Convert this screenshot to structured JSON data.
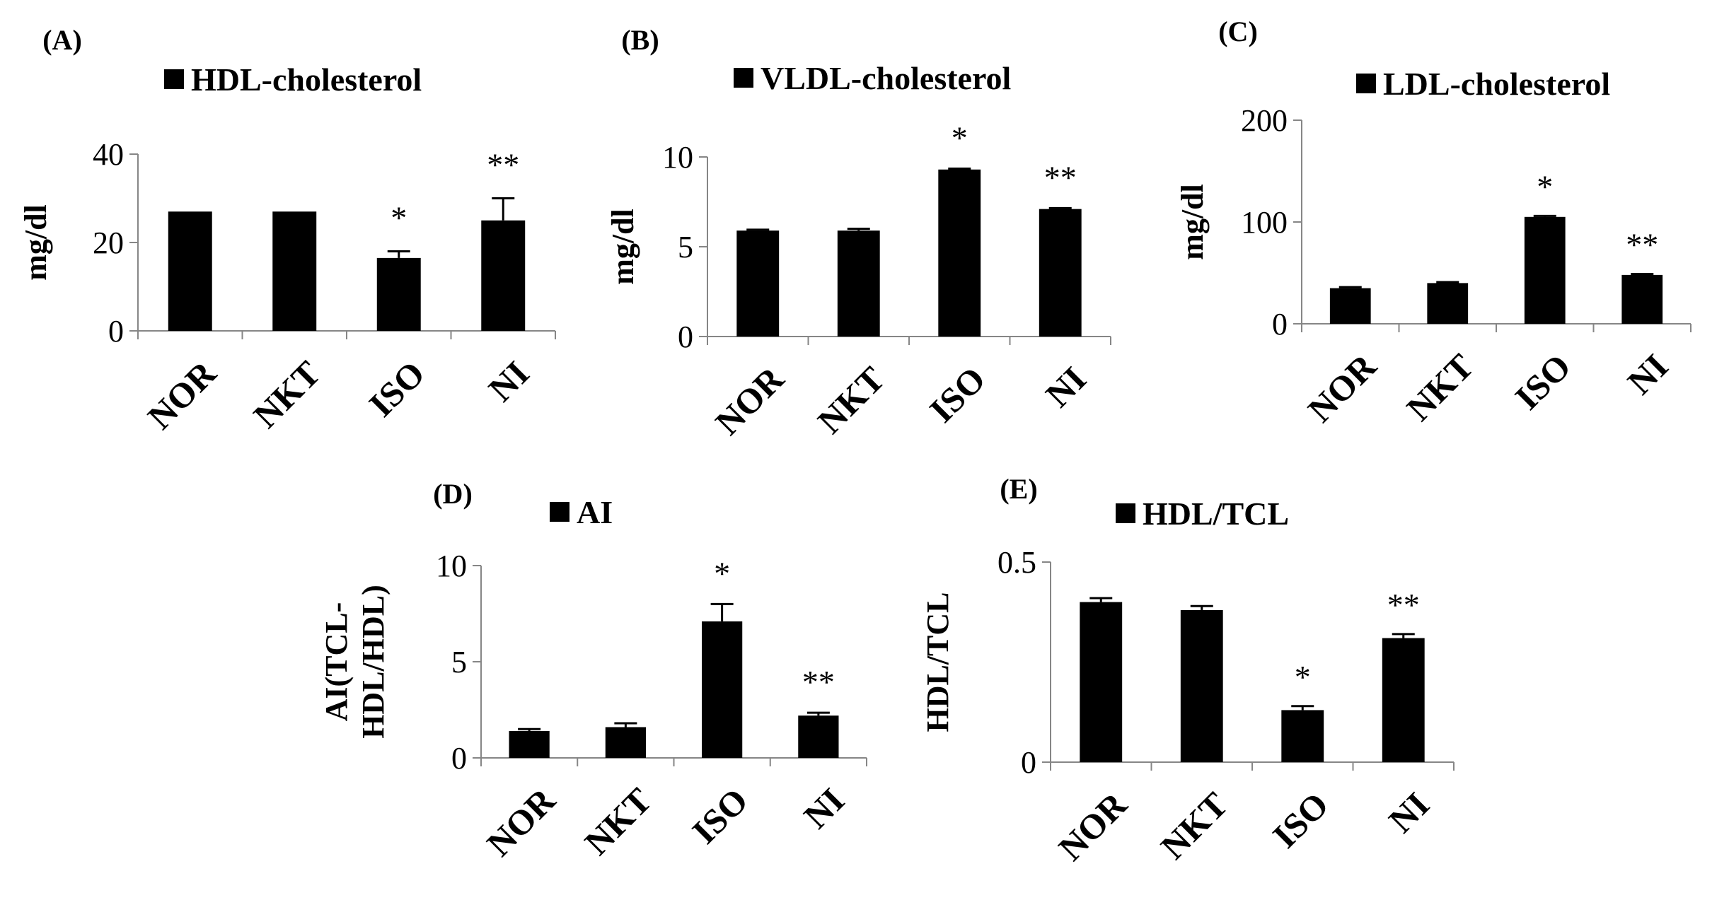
{
  "chart_data": [
    {
      "type": "bar",
      "panel": "(A)",
      "title": "HDL-cholesterol",
      "xlabel": "",
      "ylabel": "mg/dl",
      "ylim": [
        0,
        40
      ],
      "yticks": [
        "0",
        "20",
        "40"
      ],
      "categories": [
        "NOR",
        "NKT",
        "ISO",
        "NI"
      ],
      "values": [
        27,
        27,
        16.5,
        25
      ],
      "errors": [
        0,
        0,
        1.5,
        5
      ],
      "significance": [
        "",
        "",
        "*",
        "**"
      ]
    },
    {
      "type": "bar",
      "panel": "(B)",
      "title": "VLDL-cholesterol",
      "xlabel": "",
      "ylabel": "mg/dl",
      "ylim": [
        0,
        10
      ],
      "yticks": [
        "0",
        "5",
        "10"
      ],
      "categories": [
        "NOR",
        "NKT",
        "ISO",
        "NI"
      ],
      "values": [
        5.9,
        5.9,
        9.3,
        7.1
      ],
      "errors": [
        0.05,
        0.1,
        0.05,
        0.05
      ],
      "significance": [
        "",
        "",
        "*",
        "**"
      ]
    },
    {
      "type": "bar",
      "panel": "(C)",
      "title": "LDL-cholesterol",
      "xlabel": "",
      "ylabel": "mg/dl",
      "ylim": [
        0,
        200
      ],
      "yticks": [
        "0",
        "100",
        "200"
      ],
      "categories": [
        "NOR",
        "NKT",
        "ISO",
        "NI"
      ],
      "values": [
        35,
        40,
        105,
        48
      ],
      "errors": [
        1,
        1,
        1,
        1
      ],
      "significance": [
        "",
        "",
        "*",
        "**"
      ]
    },
    {
      "type": "bar",
      "panel": "(D)",
      "title": "AI",
      "xlabel": "",
      "ylabel_lines": [
        "AI(TCL-",
        "HDL/HDL)"
      ],
      "ylim": [
        0,
        10
      ],
      "yticks": [
        "0",
        "5",
        "10"
      ],
      "categories": [
        "NOR",
        "NKT",
        "ISO",
        "NI"
      ],
      "values": [
        1.4,
        1.6,
        7.1,
        2.2
      ],
      "errors": [
        0.1,
        0.2,
        0.9,
        0.15
      ],
      "significance": [
        "",
        "",
        "*",
        "**"
      ]
    },
    {
      "type": "bar",
      "panel": "(E)",
      "title": "HDL/TCL",
      "xlabel": "",
      "ylabel": "HDL/TCL",
      "ylim": [
        0,
        0.5
      ],
      "yticks": [
        "0",
        "0.5"
      ],
      "categories": [
        "NOR",
        "NKT",
        "ISO",
        "NI"
      ],
      "values": [
        0.4,
        0.38,
        0.13,
        0.31
      ],
      "errors": [
        0.01,
        0.01,
        0.01,
        0.01
      ],
      "significance": [
        "",
        "",
        "*",
        "**"
      ]
    }
  ]
}
